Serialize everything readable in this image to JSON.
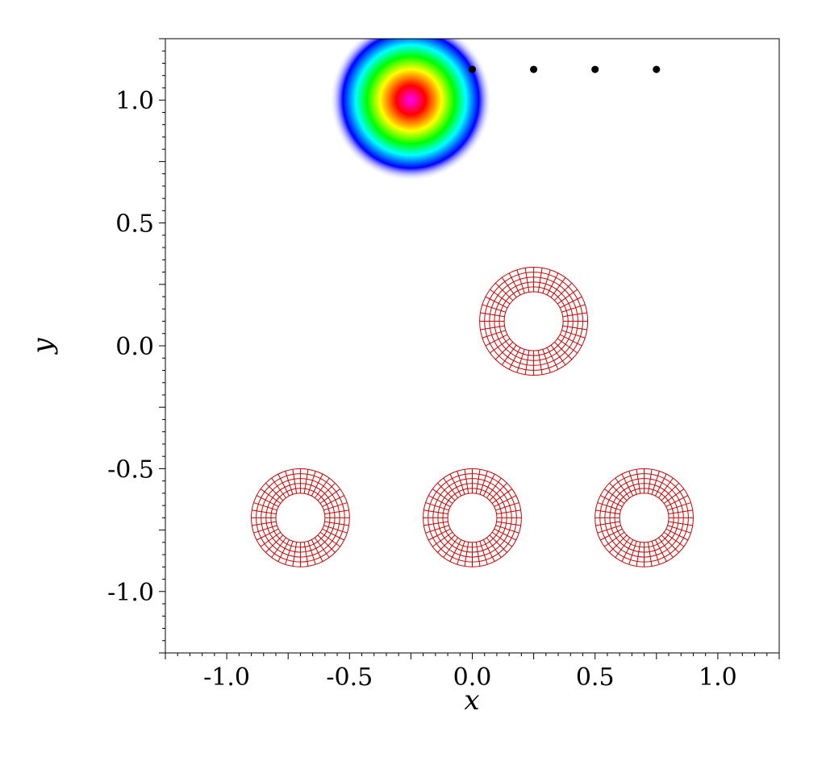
{
  "chart_data": {
    "type": "scatter",
    "title": "",
    "xlabel": "x",
    "ylabel": "y",
    "xlim": [
      -1.25,
      1.25
    ],
    "ylim": [
      -1.25,
      1.25
    ],
    "grid": false,
    "x_ticks": [
      -1.0,
      -0.5,
      0.0,
      0.5,
      1.0
    ],
    "y_ticks": [
      -1.0,
      -0.5,
      0.0,
      0.5,
      1.0
    ],
    "x_tick_labels": [
      "-1.0",
      "-0.5",
      "0.0",
      "0.5",
      "1.0"
    ],
    "y_tick_labels": [
      "-1.0",
      "-0.5",
      "0.0",
      "0.5",
      "1.0"
    ],
    "gaussian_blob": {
      "center": [
        -0.25,
        1.0
      ],
      "colormap": [
        "#ff00ff",
        "#ff0000",
        "#ffff00",
        "#00ff00",
        "#00ffff",
        "#0000ff",
        "#ffffff"
      ]
    },
    "points": [
      {
        "x": 0.0,
        "y": 1.125
      },
      {
        "x": 0.25,
        "y": 1.125
      },
      {
        "x": 0.5,
        "y": 1.125
      },
      {
        "x": 0.75,
        "y": 1.125
      }
    ],
    "annular_meshes": [
      {
        "center": [
          0.25,
          0.1
        ],
        "inner_radius": 0.12,
        "outer_radius": 0.22,
        "radial_divisions": 5,
        "angular_divisions": 40
      },
      {
        "center": [
          -0.7,
          -0.7
        ],
        "inner_radius": 0.1,
        "outer_radius": 0.2,
        "radial_divisions": 5,
        "angular_divisions": 40
      },
      {
        "center": [
          0.0,
          -0.7
        ],
        "inner_radius": 0.1,
        "outer_radius": 0.2,
        "radial_divisions": 5,
        "angular_divisions": 40
      },
      {
        "center": [
          0.7,
          -0.7
        ],
        "inner_radius": 0.1,
        "outer_radius": 0.2,
        "radial_divisions": 5,
        "angular_divisions": 40
      }
    ],
    "colors": {
      "mesh": "#cc0000",
      "points": "#000000",
      "frame": "#000000"
    }
  }
}
